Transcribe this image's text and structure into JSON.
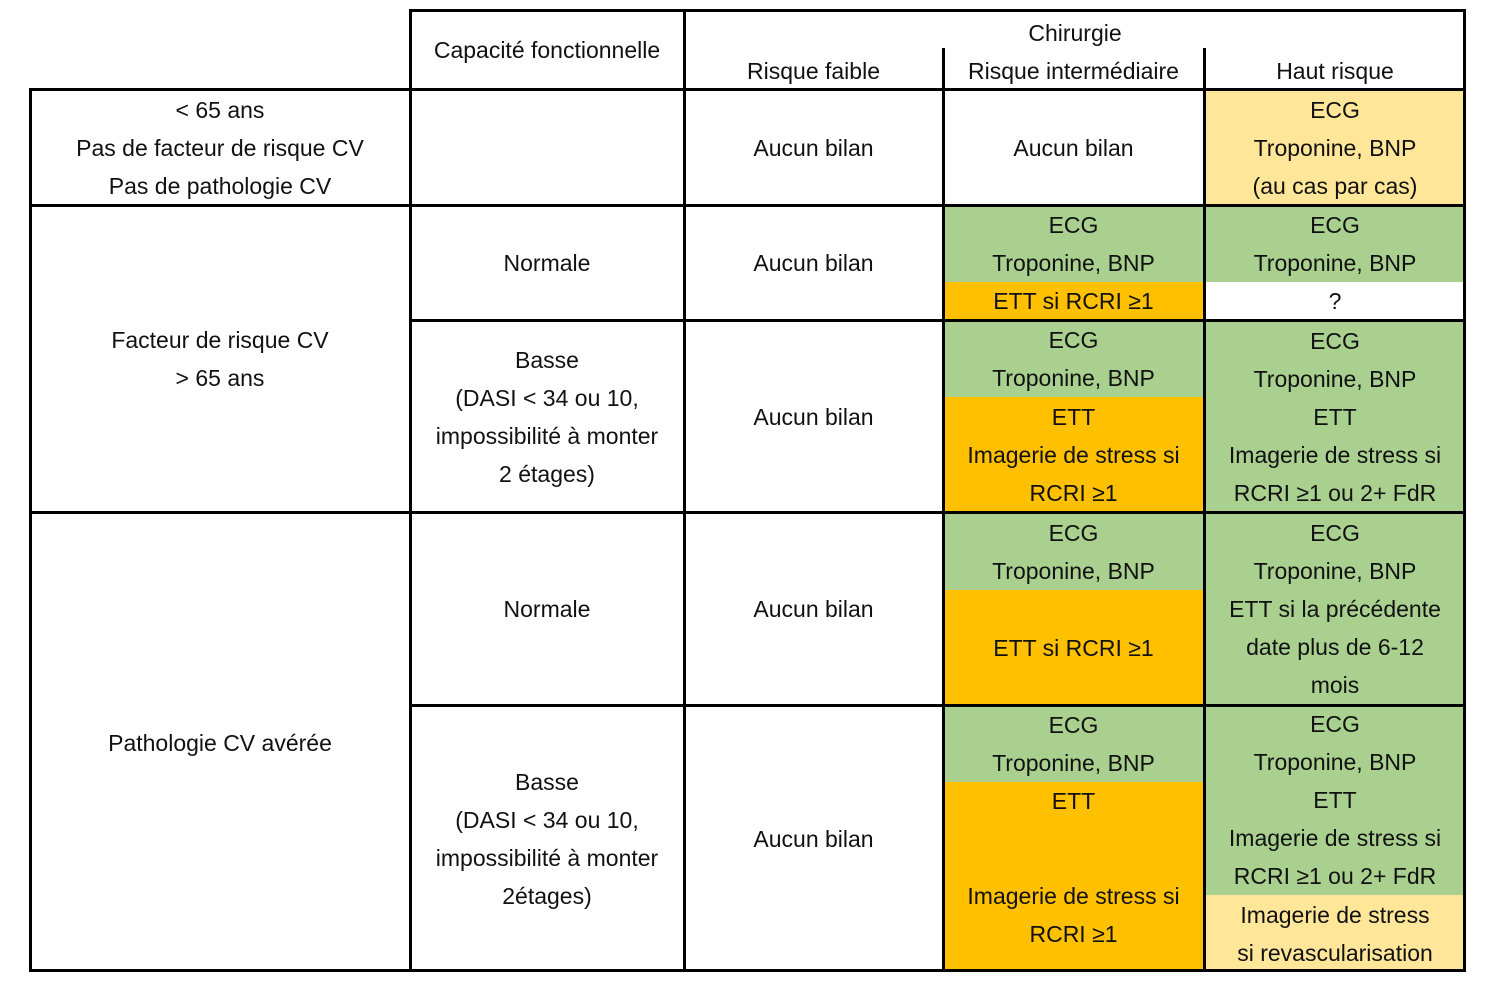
{
  "colors": {
    "green": "#a9d08e",
    "orange": "#ffc000",
    "light_yellow": "#ffe699",
    "border": "#000000"
  },
  "header": {
    "capacity": "Capacité fonctionnelle",
    "surgery": "Chirurgie",
    "low_risk": "Risque faible",
    "intermediate_risk": "Risque intermédiaire",
    "high_risk": "Haut risque"
  },
  "row1": {
    "patient": [
      "< 65 ans",
      "Pas de facteur de risque CV",
      "Pas de pathologie CV"
    ],
    "low": "Aucun bilan",
    "intermediate": "Aucun bilan",
    "high": [
      "ECG",
      "Troponine, BNP",
      "(au cas par cas)"
    ]
  },
  "group2": {
    "patient": [
      "Facteur de risque CV",
      "> 65 ans"
    ],
    "normal": {
      "capacity": "Normale",
      "low": "Aucun bilan",
      "intermediate_green": [
        "ECG",
        "Troponine, BNP"
      ],
      "intermediate_orange": [
        "ETT si RCRI ≥1"
      ],
      "high_green": [
        "ECG",
        "Troponine, BNP"
      ],
      "high_white": [
        "?"
      ]
    },
    "basse": {
      "capacity": [
        "Basse",
        "(DASI < 34 ou 10,",
        "impossibilité à monter",
        "2 étages)"
      ],
      "low": "Aucun bilan",
      "intermediate_green": [
        "ECG",
        "Troponine, BNP"
      ],
      "intermediate_orange": [
        "ETT",
        "Imagerie de stress si",
        "RCRI ≥1"
      ],
      "high_green": [
        "ECG",
        "Troponine, BNP",
        "ETT",
        "Imagerie de stress si",
        "RCRI ≥1 ou 2+ FdR"
      ]
    }
  },
  "group3": {
    "patient": [
      "Pathologie CV avérée"
    ],
    "normal": {
      "capacity": "Normale",
      "low": "Aucun bilan",
      "intermediate_green": [
        "ECG",
        "Troponine, BNP"
      ],
      "intermediate_orange": [
        "ETT si RCRI ≥1"
      ],
      "high_green": [
        "ECG",
        "Troponine, BNP",
        "ETT si la précédente",
        "date plus de 6-12",
        "mois"
      ]
    },
    "basse": {
      "capacity": [
        "Basse",
        "(DASI < 34 ou 10,",
        "impossibilité à monter",
        "2étages)"
      ],
      "low": "Aucun bilan",
      "intermediate_green": [
        "ECG",
        "Troponine, BNP"
      ],
      "intermediate_orange_top": [
        "ETT"
      ],
      "intermediate_orange_bottom": [
        "Imagerie de stress si",
        "RCRI ≥1"
      ],
      "high_green": [
        "ECG",
        "Troponine, BNP",
        "ETT",
        "Imagerie de stress si",
        "RCRI ≥1 ou 2+ FdR"
      ],
      "high_yellow": [
        "Imagerie de stress",
        "si revascularisation"
      ]
    }
  }
}
